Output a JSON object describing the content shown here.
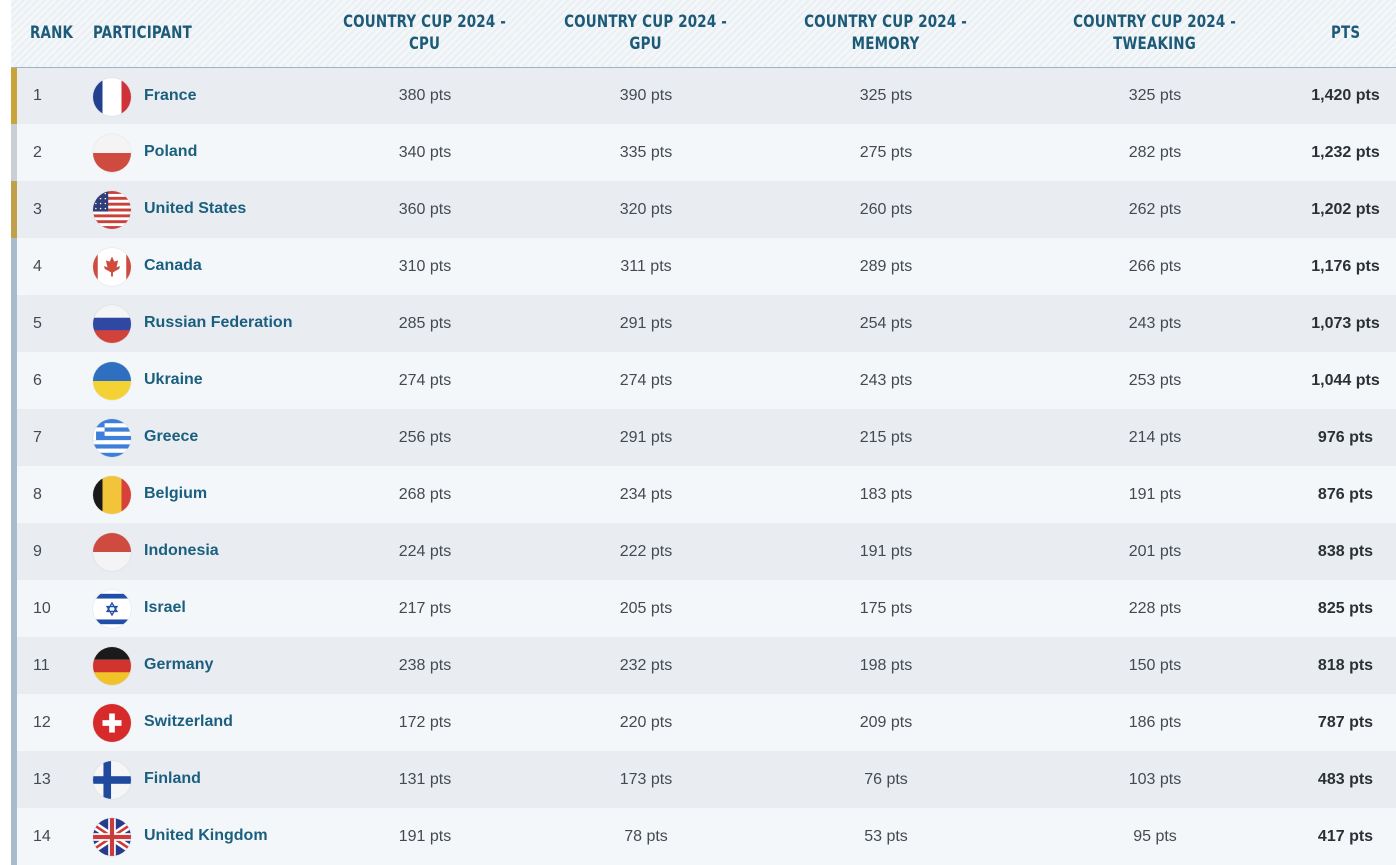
{
  "table": {
    "headers": {
      "rank": "RANK",
      "participant": "PARTICIPANT",
      "cpu": [
        "COUNTRY CUP 2024 -",
        "CPU"
      ],
      "gpu": [
        "COUNTRY CUP 2024 -",
        "GPU"
      ],
      "memory": [
        "COUNTRY CUP 2024 -",
        "MEMORY"
      ],
      "tweaking": [
        "COUNTRY CUP 2024 -",
        "TWEAKING"
      ],
      "pts": "PTS"
    },
    "medal_colors": {
      "gold": "#c9a43a",
      "silver": "#c9cfd5",
      "bronze": "#c0a04a",
      "default": "#a9bccb"
    },
    "rows": [
      {
        "rank": "1",
        "name": "France",
        "flag": "france-flag-icon",
        "cpu": "380 pts",
        "gpu": "390 pts",
        "memory": "325 pts",
        "tweaking": "325 pts",
        "total": "1,420 pts"
      },
      {
        "rank": "2",
        "name": "Poland",
        "flag": "poland-flag-icon",
        "cpu": "340 pts",
        "gpu": "335 pts",
        "memory": "275 pts",
        "tweaking": "282 pts",
        "total": "1,232 pts"
      },
      {
        "rank": "3",
        "name": "United States",
        "flag": "united-states-flag-icon",
        "cpu": "360 pts",
        "gpu": "320 pts",
        "memory": "260 pts",
        "tweaking": "262 pts",
        "total": "1,202 pts"
      },
      {
        "rank": "4",
        "name": "Canada",
        "flag": "canada-flag-icon",
        "cpu": "310 pts",
        "gpu": "311 pts",
        "memory": "289 pts",
        "tweaking": "266 pts",
        "total": "1,176 pts"
      },
      {
        "rank": "5",
        "name": "Russian Federation",
        "flag": "russia-flag-icon",
        "cpu": "285 pts",
        "gpu": "291 pts",
        "memory": "254 pts",
        "tweaking": "243 pts",
        "total": "1,073 pts"
      },
      {
        "rank": "6",
        "name": "Ukraine",
        "flag": "ukraine-flag-icon",
        "cpu": "274 pts",
        "gpu": "274 pts",
        "memory": "243 pts",
        "tweaking": "253 pts",
        "total": "1,044 pts"
      },
      {
        "rank": "7",
        "name": "Greece",
        "flag": "greece-flag-icon",
        "cpu": "256 pts",
        "gpu": "291 pts",
        "memory": "215 pts",
        "tweaking": "214 pts",
        "total": "976 pts"
      },
      {
        "rank": "8",
        "name": "Belgium",
        "flag": "belgium-flag-icon",
        "cpu": "268 pts",
        "gpu": "234 pts",
        "memory": "183 pts",
        "tweaking": "191 pts",
        "total": "876 pts"
      },
      {
        "rank": "9",
        "name": "Indonesia",
        "flag": "indonesia-flag-icon",
        "cpu": "224 pts",
        "gpu": "222 pts",
        "memory": "191 pts",
        "tweaking": "201 pts",
        "total": "838 pts"
      },
      {
        "rank": "10",
        "name": "Israel",
        "flag": "israel-flag-icon",
        "cpu": "217 pts",
        "gpu": "205 pts",
        "memory": "175 pts",
        "tweaking": "228 pts",
        "total": "825 pts"
      },
      {
        "rank": "11",
        "name": "Germany",
        "flag": "germany-flag-icon",
        "cpu": "238 pts",
        "gpu": "232 pts",
        "memory": "198 pts",
        "tweaking": "150 pts",
        "total": "818 pts"
      },
      {
        "rank": "12",
        "name": "Switzerland",
        "flag": "switzerland-flag-icon",
        "cpu": "172 pts",
        "gpu": "220 pts",
        "memory": "209 pts",
        "tweaking": "186 pts",
        "total": "787 pts"
      },
      {
        "rank": "13",
        "name": "Finland",
        "flag": "finland-flag-icon",
        "cpu": "131 pts",
        "gpu": "173 pts",
        "memory": "76 pts",
        "tweaking": "103 pts",
        "total": "483 pts"
      },
      {
        "rank": "14",
        "name": "United Kingdom",
        "flag": "united-kingdom-flag-icon",
        "cpu": "191 pts",
        "gpu": "78 pts",
        "memory": "53 pts",
        "tweaking": "95 pts",
        "total": "417 pts"
      }
    ]
  }
}
